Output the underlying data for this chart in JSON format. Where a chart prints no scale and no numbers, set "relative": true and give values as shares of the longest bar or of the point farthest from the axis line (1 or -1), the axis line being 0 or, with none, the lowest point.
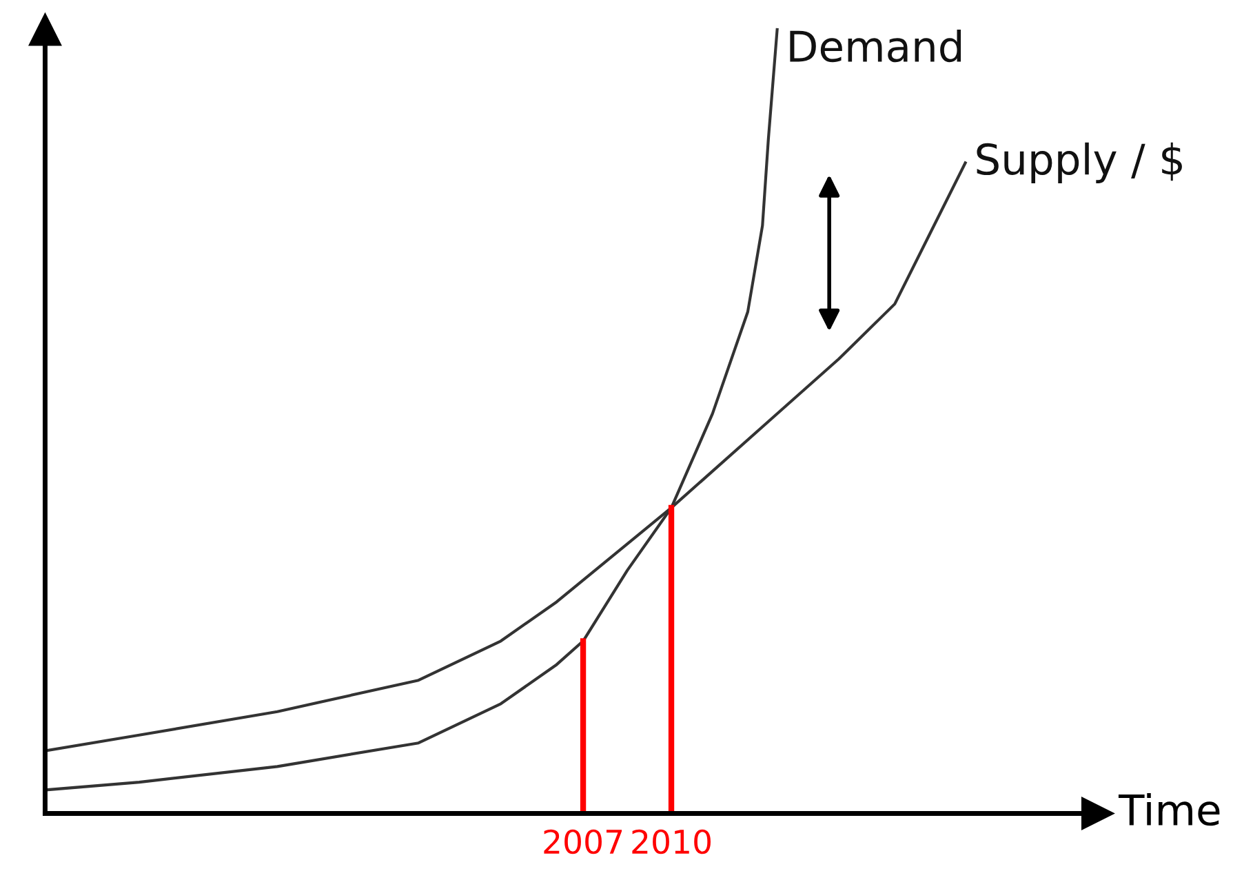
{
  "chart_data": {
    "type": "line",
    "relative": true,
    "xlabel": "Time",
    "xlim": [
      1988.7,
      2024.5
    ],
    "xticks": [
      2007,
      2010
    ],
    "series": [
      {
        "name": "Demand",
        "color": "#333333",
        "x": [
          1988.7,
          1991.9,
          1996.6,
          2001.4,
          2004.2,
          2006.1,
          2007.0,
          2008.5,
          2010.0,
          2011.4,
          2012.6,
          2013.1,
          2013.3,
          2013.6
        ],
        "values": [
          0.03,
          0.04,
          0.06,
          0.09,
          0.14,
          0.19,
          0.22,
          0.31,
          0.39,
          0.51,
          0.64,
          0.75,
          0.86,
          1.0
        ]
      },
      {
        "name": "Supply / $",
        "color": "#333333",
        "x": [
          1988.7,
          1991.9,
          1996.6,
          2001.4,
          2004.2,
          2006.1,
          2010.0,
          2013.3,
          2015.7,
          2017.6,
          2018.8,
          2020.0
        ],
        "values": [
          0.08,
          0.1,
          0.13,
          0.17,
          0.22,
          0.27,
          0.39,
          0.5,
          0.58,
          0.65,
          0.74,
          0.83
        ]
      }
    ],
    "ref_lines": [
      {
        "axis": "x",
        "value": 2007,
        "color": "#ff0000"
      },
      {
        "axis": "x",
        "value": 2010,
        "color": "#ff0000"
      }
    ],
    "grid": false,
    "legend": false,
    "marker": "none",
    "line_style": "solid"
  }
}
